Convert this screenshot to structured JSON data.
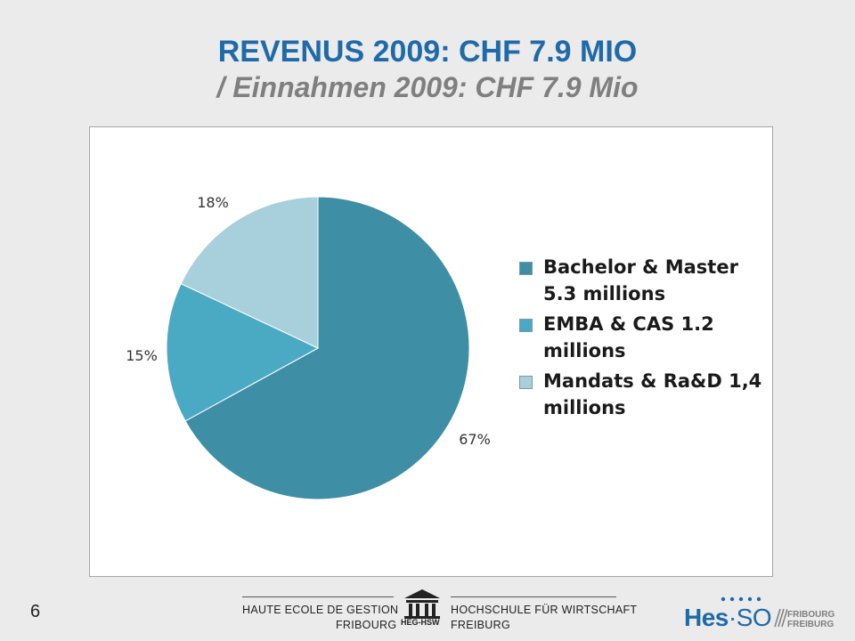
{
  "slide": {
    "title": "REVENUS 2009: CHF 7.9 MIO",
    "subtitle": "/ Einnahmen 2009: CHF 7.9 Mio",
    "page_number": "6"
  },
  "chart_data": {
    "type": "pie",
    "slices": [
      {
        "label": "Bachelor & Master 5.3 millions",
        "value": 67,
        "display": "67%",
        "color": "#3e8ea6"
      },
      {
        "label": "EMBA & CAS 1.2 millions",
        "value": 15,
        "display": "15%",
        "color": "#4aaac4"
      },
      {
        "label": "Mandats & Ra&D 1,4 millions",
        "value": 18,
        "display": "18%",
        "color": "#a8d0dc"
      }
    ],
    "legend_placement": "right"
  },
  "footer": {
    "left_line1": "HAUTE ECOLE DE GESTION",
    "left_line2": "FRIBOURG",
    "right_line1": "HOCHSCHULE FÜR WIRTSCHAFT",
    "right_line2": "FREIBURG",
    "heg_logo_text": "HEG-HSW",
    "hes_main": "Hes",
    "hes_so": "·SO",
    "hes_city1": "FRIBOURG",
    "hes_city2": "FREIBURG"
  },
  "colors": {
    "title": "#1f6aa8",
    "subtitle": "#7f7f7f",
    "background": "#ebebeb"
  }
}
